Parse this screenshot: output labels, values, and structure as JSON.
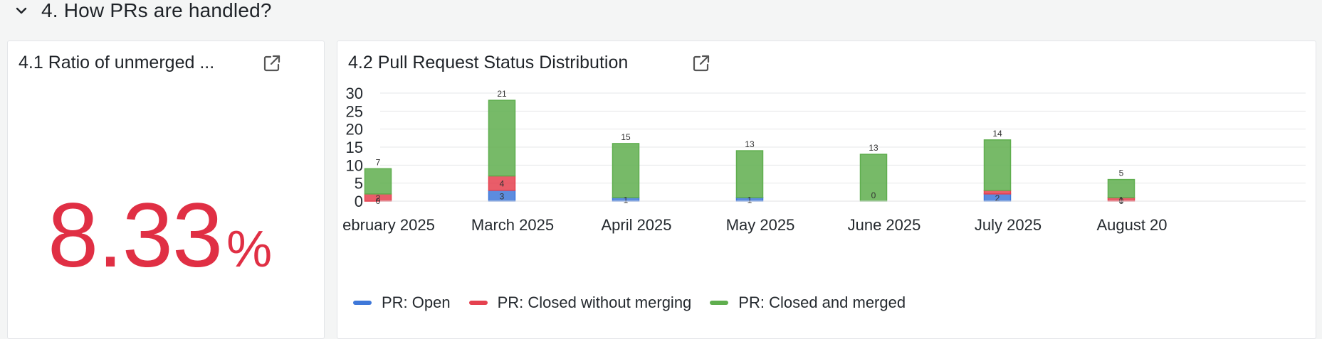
{
  "section": {
    "title": "4. How PRs are handled?",
    "toggle_icon": "chevron-down-icon"
  },
  "ratio_panel": {
    "title": "4.1 Ratio of unmerged ...",
    "value": "8.33",
    "unit": "%",
    "value_color": "#e02f44",
    "icon": "external-link-icon"
  },
  "dist_panel": {
    "title": "4.2 Pull Request Status Distribution",
    "icon": "external-link-icon"
  },
  "colors": {
    "open": "#3f78d9",
    "closed_without": "#e5414f",
    "merged": "#5fae4e"
  },
  "chart_data": {
    "type": "bar",
    "stacked": true,
    "categories": [
      "ebruary 2025",
      "March 2025",
      "April 2025",
      "May 2025",
      "June 2025",
      "July 2025",
      "August 20"
    ],
    "series": [
      {
        "name": "PR: Open",
        "key": "open",
        "values": [
          0,
          3,
          1,
          1,
          0,
          2,
          0
        ]
      },
      {
        "name": "PR: Closed without merging",
        "key": "closed_without",
        "values": [
          2,
          4,
          0,
          0,
          0,
          1,
          1
        ]
      },
      {
        "name": "PR: Closed and merged",
        "key": "merged",
        "values": [
          7,
          21,
          15,
          13,
          13,
          14,
          5
        ]
      }
    ],
    "data_labels": [
      {
        "category": 0,
        "labels": [
          "0",
          "2",
          "7"
        ]
      },
      {
        "category": 1,
        "labels": [
          "3",
          "4",
          "21"
        ]
      },
      {
        "category": 2,
        "labels": [
          "1",
          "15"
        ]
      },
      {
        "category": 3,
        "labels": [
          "1",
          "13"
        ]
      },
      {
        "category": 4,
        "labels": [
          "0",
          "13"
        ]
      },
      {
        "category": 5,
        "labels": [
          "2",
          "14"
        ]
      },
      {
        "category": 6,
        "labels": [
          "0",
          "1",
          "5"
        ]
      }
    ],
    "y_ticks": [
      "0",
      "5",
      "10",
      "15",
      "20",
      "25",
      "30"
    ],
    "ylim": [
      0,
      30
    ],
    "grid": true,
    "legend_position": "bottom-left"
  }
}
